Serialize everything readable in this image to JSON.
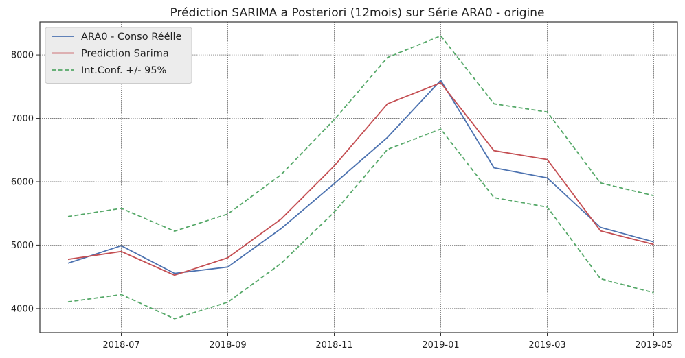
{
  "chart_data": {
    "type": "line",
    "title": "Prédiction SARIMA a Posteriori (12mois) sur Série ARA0 - origine",
    "xlabel": "",
    "ylabel": "",
    "x": [
      "2018-06",
      "2018-07",
      "2018-08",
      "2018-09",
      "2018-10",
      "2018-11",
      "2018-12",
      "2019-01",
      "2019-02",
      "2019-03",
      "2019-04",
      "2019-05"
    ],
    "x_ticks": [
      "2018-07",
      "2018-09",
      "2018-11",
      "2019-01",
      "2019-03",
      "2019-05"
    ],
    "y_ticks": [
      4000,
      5000,
      6000,
      7000,
      8000
    ],
    "ylim": [
      3620,
      8520
    ],
    "grid": true,
    "legend_position": "top-left",
    "series": [
      {
        "name": "ARA0 - Conso Réélle",
        "color": "#4c72b0",
        "style": "solid",
        "values": [
          4715,
          4990,
          4555,
          4655,
          5260,
          5970,
          6700,
          7600,
          6220,
          6060,
          5280,
          5050
        ]
      },
      {
        "name": "Prediction Sarima",
        "color": "#c44e52",
        "style": "solid",
        "values": [
          4775,
          4900,
          4525,
          4800,
          5410,
          6250,
          7230,
          7560,
          6490,
          6350,
          5225,
          5010
        ]
      },
      {
        "name": "Int.Conf. +/- 95%",
        "color": "#55a868",
        "style": "dashed",
        "values": [
          5450,
          5580,
          5220,
          5490,
          6110,
          6980,
          7960,
          8300,
          7230,
          7100,
          5980,
          5780
        ]
      },
      {
        "name": "",
        "color": "#55a868",
        "style": "dashed",
        "values": [
          4105,
          4220,
          3840,
          4100,
          4710,
          5520,
          6510,
          6830,
          5750,
          5600,
          4470,
          4250
        ]
      }
    ]
  }
}
